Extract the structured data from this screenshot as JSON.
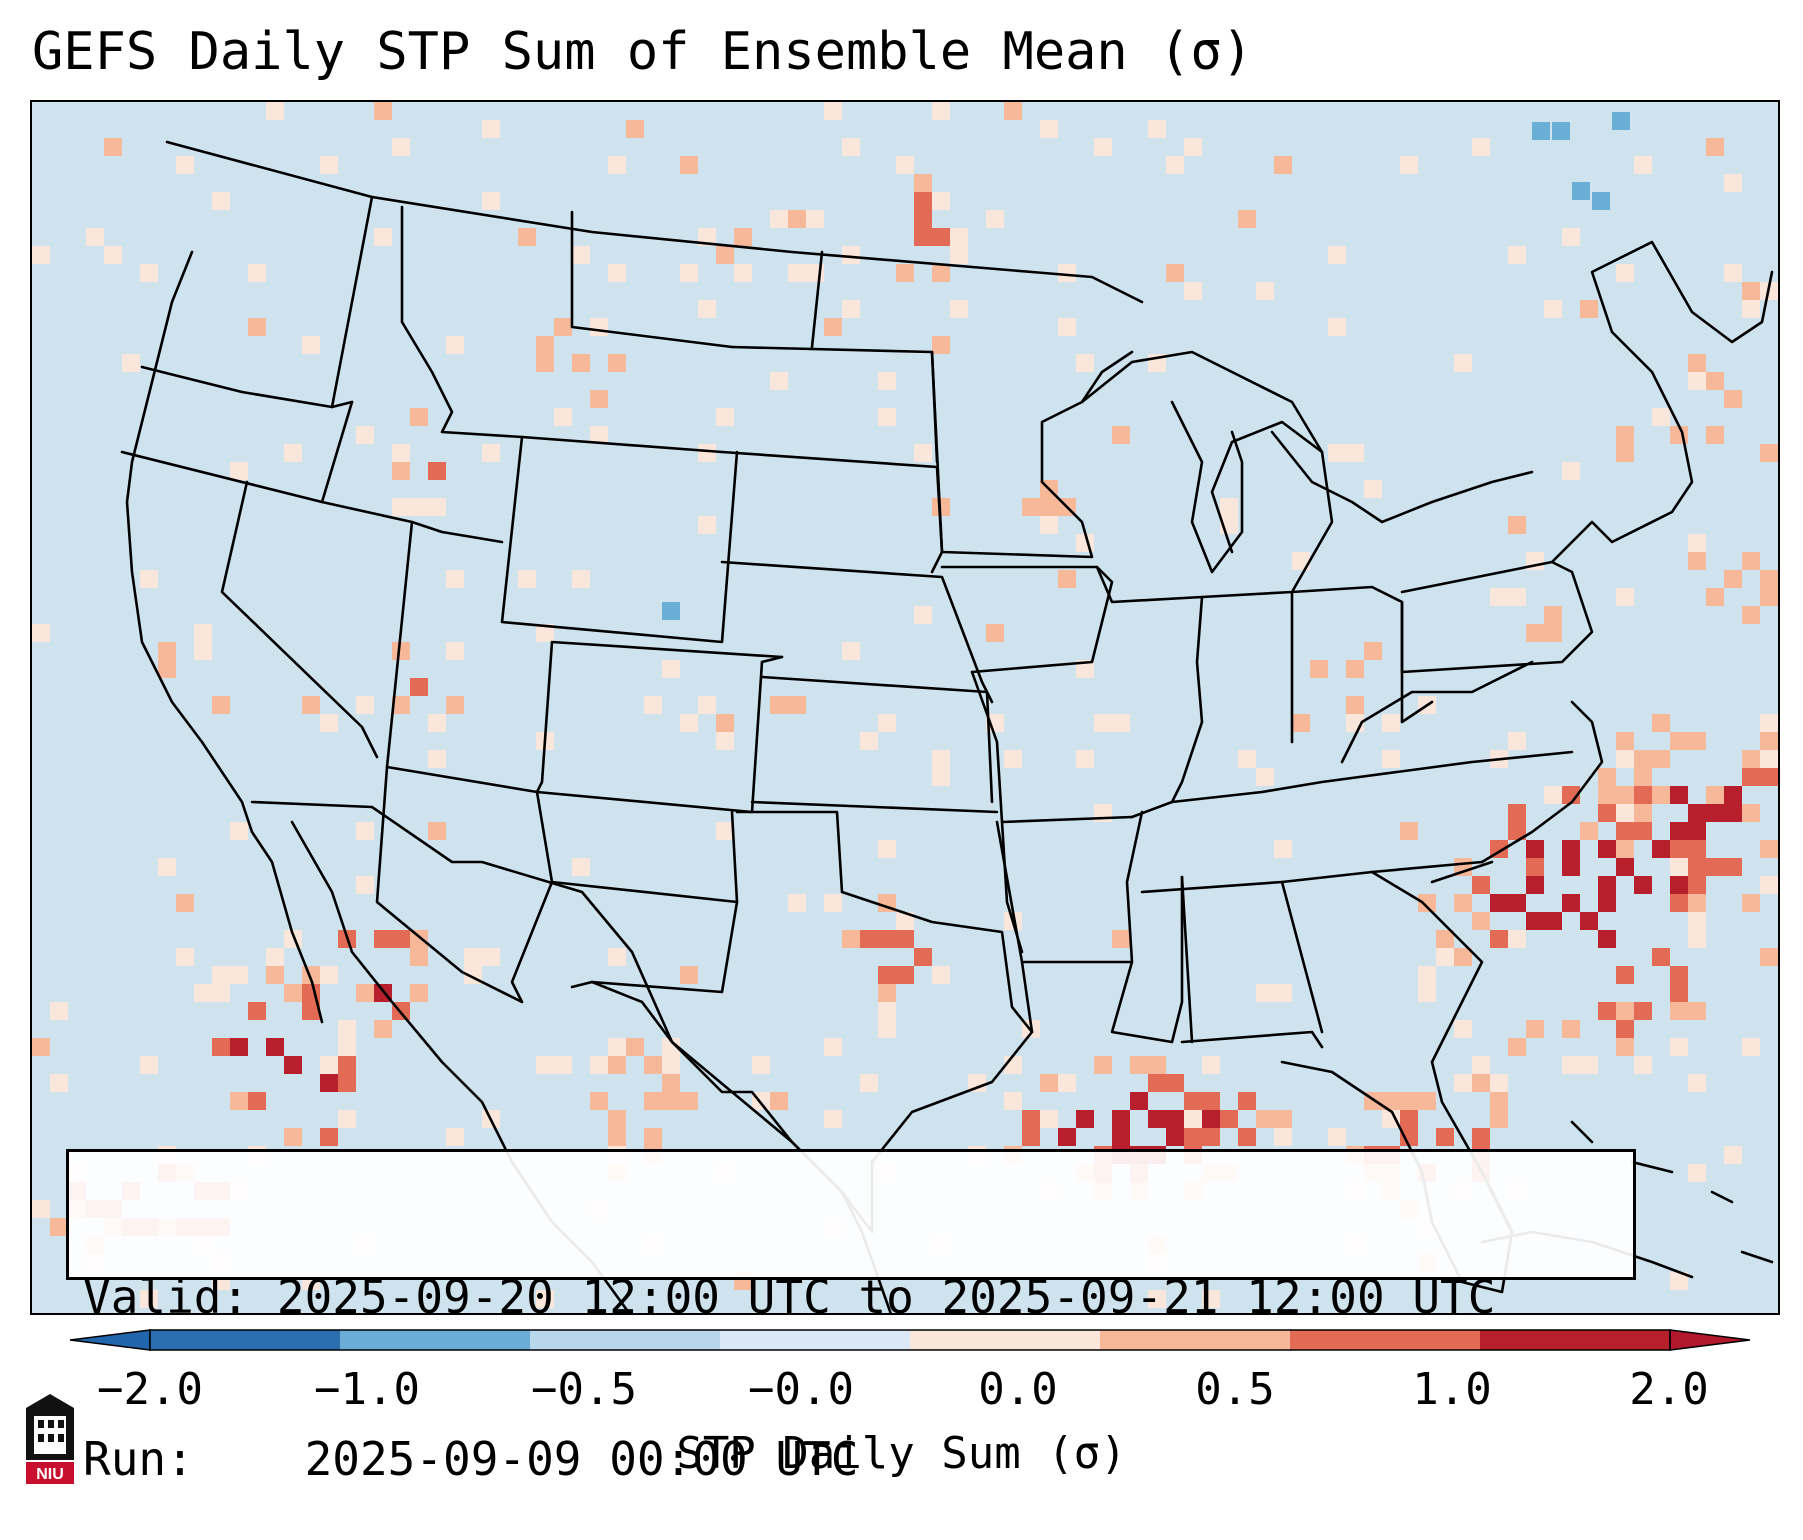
{
  "title": "GEFS Daily STP Sum of Ensemble Mean (σ)",
  "info_box": {
    "valid_label": "Valid:",
    "valid_value": "2025-09-20 12:00 UTC to 2025-09-21 12:00 UTC",
    "run_label": "Run:",
    "run_value": "2025-09-09 00:00 UTC"
  },
  "colorbar": {
    "label": "STP Daily Sum (σ)",
    "ticks": [
      "−2.0",
      "−1.0",
      "−0.5",
      "−0.0",
      "0.0",
      "0.5",
      "1.0",
      "2.0"
    ],
    "colors": [
      "#2c6fb0",
      "#6aaed6",
      "#b9d7ea",
      "#dbe9f6",
      "#fbe6dc",
      "#f7b899",
      "#e36a55",
      "#b71f2d"
    ],
    "under_color": "#2166ac",
    "over_color": "#b2182b"
  },
  "map": {
    "background_color": "#cfe3ef",
    "region": "Continental United States"
  },
  "logo": {
    "text": "NIU"
  }
}
